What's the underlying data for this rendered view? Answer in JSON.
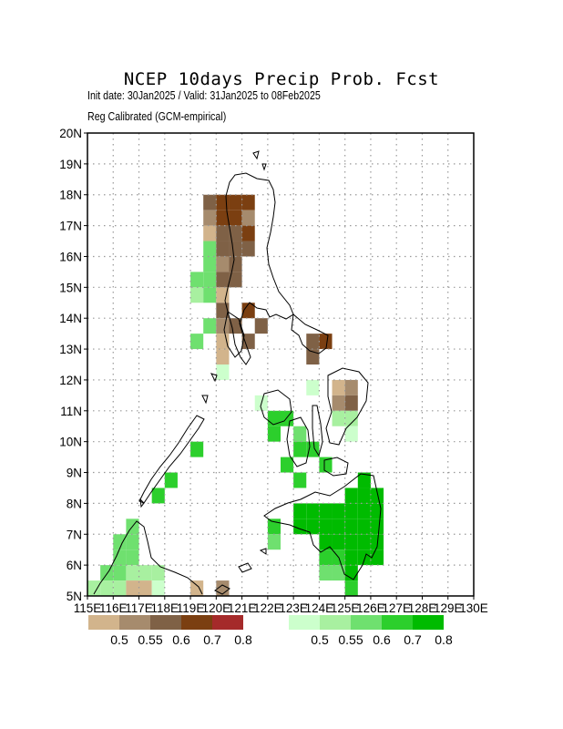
{
  "title": "NCEP 10days Precip Prob. Fcst",
  "subtitle1": "Init date: 30Jan2025 / Valid: 31Jan2025 to 08Feb2025",
  "subtitle2": "Reg Calibrated (GCM-empirical)",
  "map": {
    "lon_range": [
      115,
      130
    ],
    "lat_range": [
      5,
      20
    ],
    "grid": true,
    "lon_ticks": [
      "115E",
      "116E",
      "117E",
      "118E",
      "119E",
      "120E",
      "121E",
      "122E",
      "123E",
      "124E",
      "125E",
      "126E",
      "127E",
      "128E",
      "129E",
      "130E"
    ],
    "lat_ticks": [
      "5N",
      "6N",
      "7N",
      "8N",
      "9N",
      "10N",
      "11N",
      "12N",
      "13N",
      "14N",
      "15N",
      "16N",
      "17N",
      "18N",
      "19N",
      "20N"
    ]
  },
  "legend_dry": {
    "labels": [
      "0.5",
      "0.55",
      "0.6",
      "0.7",
      "0.8"
    ],
    "colors": [
      "#d2b48c",
      "#a68b6d",
      "#7f6146",
      "#7b3f11",
      "#a52a2a"
    ]
  },
  "legend_wet": {
    "labels": [
      "0.5",
      "0.55",
      "0.6",
      "0.7",
      "0.8"
    ],
    "colors": [
      "#ccffcc",
      "#a8f0a0",
      "#6fe06f",
      "#2ccf2c",
      "#00bb00"
    ]
  },
  "cells": [
    {
      "lon": 119.75,
      "lat": 17.75,
      "c": "#7f6146"
    },
    {
      "lon": 120.25,
      "lat": 17.75,
      "c": "#7b3f11"
    },
    {
      "lon": 120.75,
      "lat": 17.75,
      "c": "#7b3f11"
    },
    {
      "lon": 121.25,
      "lat": 17.75,
      "c": "#7b3f11"
    },
    {
      "lon": 119.75,
      "lat": 17.25,
      "c": "#a68b6d"
    },
    {
      "lon": 120.25,
      "lat": 17.25,
      "c": "#7b3f11"
    },
    {
      "lon": 120.75,
      "lat": 17.25,
      "c": "#7b3f11"
    },
    {
      "lon": 121.25,
      "lat": 17.25,
      "c": "#a68b6d"
    },
    {
      "lon": 119.75,
      "lat": 16.75,
      "c": "#d2b48c"
    },
    {
      "lon": 120.25,
      "lat": 16.75,
      "c": "#7f6146"
    },
    {
      "lon": 120.75,
      "lat": 16.75,
      "c": "#7f6146"
    },
    {
      "lon": 121.25,
      "lat": 16.75,
      "c": "#7b3f11"
    },
    {
      "lon": 119.75,
      "lat": 16.25,
      "c": "#6fe06f"
    },
    {
      "lon": 120.25,
      "lat": 16.25,
      "c": "#7f6146"
    },
    {
      "lon": 120.75,
      "lat": 16.25,
      "c": "#7f6146"
    },
    {
      "lon": 121.25,
      "lat": 16.25,
      "c": "#7f6146"
    },
    {
      "lon": 119.75,
      "lat": 15.75,
      "c": "#6fe06f"
    },
    {
      "lon": 120.25,
      "lat": 15.75,
      "c": "#a68b6d"
    },
    {
      "lon": 120.75,
      "lat": 15.75,
      "c": "#7f6146"
    },
    {
      "lon": 119.25,
      "lat": 15.25,
      "c": "#6fe06f"
    },
    {
      "lon": 119.75,
      "lat": 15.25,
      "c": "#6fe06f"
    },
    {
      "lon": 120.25,
      "lat": 15.25,
      "c": "#7f6146"
    },
    {
      "lon": 120.75,
      "lat": 15.25,
      "c": "#7f6146"
    },
    {
      "lon": 119.25,
      "lat": 14.75,
      "c": "#a8f0a0"
    },
    {
      "lon": 119.75,
      "lat": 14.75,
      "c": "#6fe06f"
    },
    {
      "lon": 120.25,
      "lat": 14.75,
      "c": "#d2b48c"
    },
    {
      "lon": 120.25,
      "lat": 14.25,
      "c": "#7f6146"
    },
    {
      "lon": 121.25,
      "lat": 14.25,
      "c": "#7b3f11"
    },
    {
      "lon": 119.75,
      "lat": 13.75,
      "c": "#6fe06f"
    },
    {
      "lon": 120.25,
      "lat": 13.75,
      "c": "#a68b6d"
    },
    {
      "lon": 120.75,
      "lat": 13.75,
      "c": "#7f6146"
    },
    {
      "lon": 121.75,
      "lat": 13.75,
      "c": "#7f6146"
    },
    {
      "lon": 119.25,
      "lat": 13.25,
      "c": "#6fe06f"
    },
    {
      "lon": 120.25,
      "lat": 13.25,
      "c": "#d2b48c"
    },
    {
      "lon": 121.25,
      "lat": 13.25,
      "c": "#7f6146"
    },
    {
      "lon": 123.75,
      "lat": 13.25,
      "c": "#7f6146"
    },
    {
      "lon": 124.25,
      "lat": 13.25,
      "c": "#7b3f11"
    },
    {
      "lon": 120.25,
      "lat": 12.75,
      "c": "#d2b48c"
    },
    {
      "lon": 123.75,
      "lat": 12.75,
      "c": "#7f6146"
    },
    {
      "lon": 120.25,
      "lat": 12.25,
      "c": "#ccffcc"
    },
    {
      "lon": 123.75,
      "lat": 11.75,
      "c": "#ccffcc"
    },
    {
      "lon": 124.75,
      "lat": 11.75,
      "c": "#d2b48c"
    },
    {
      "lon": 125.25,
      "lat": 11.75,
      "c": "#a68b6d"
    },
    {
      "lon": 121.75,
      "lat": 11.25,
      "c": "#ccffcc"
    },
    {
      "lon": 124.75,
      "lat": 11.25,
      "c": "#a68b6d"
    },
    {
      "lon": 125.25,
      "lat": 11.25,
      "c": "#7f6146"
    },
    {
      "lon": 122.25,
      "lat": 10.75,
      "c": "#2ccf2c"
    },
    {
      "lon": 122.75,
      "lat": 10.75,
      "c": "#2ccf2c"
    },
    {
      "lon": 124.75,
      "lat": 10.75,
      "c": "#a8f0a0"
    },
    {
      "lon": 125.25,
      "lat": 10.75,
      "c": "#a8f0a0"
    },
    {
      "lon": 122.25,
      "lat": 10.25,
      "c": "#2ccf2c"
    },
    {
      "lon": 123.25,
      "lat": 10.25,
      "c": "#6fe06f"
    },
    {
      "lon": 125.25,
      "lat": 10.25,
      "c": "#ccffcc"
    },
    {
      "lon": 119.25,
      "lat": 9.75,
      "c": "#2ccf2c"
    },
    {
      "lon": 123.25,
      "lat": 9.75,
      "c": "#2ccf2c"
    },
    {
      "lon": 123.75,
      "lat": 9.75,
      "c": "#2ccf2c"
    },
    {
      "lon": 122.75,
      "lat": 9.25,
      "c": "#2ccf2c"
    },
    {
      "lon": 124.25,
      "lat": 9.25,
      "c": "#2ccf2c"
    },
    {
      "lon": 118.25,
      "lat": 8.75,
      "c": "#2ccf2c"
    },
    {
      "lon": 123.25,
      "lat": 8.75,
      "c": "#2ccf2c"
    },
    {
      "lon": 125.75,
      "lat": 8.75,
      "c": "#00bb00"
    },
    {
      "lon": 117.75,
      "lat": 8.25,
      "c": "#2ccf2c"
    },
    {
      "lon": 125.25,
      "lat": 8.25,
      "c": "#00bb00"
    },
    {
      "lon": 125.75,
      "lat": 8.25,
      "c": "#00bb00"
    },
    {
      "lon": 126.25,
      "lat": 8.25,
      "c": "#00bb00"
    },
    {
      "lon": 123.25,
      "lat": 7.75,
      "c": "#00bb00"
    },
    {
      "lon": 123.75,
      "lat": 7.75,
      "c": "#00bb00"
    },
    {
      "lon": 124.25,
      "lat": 7.75,
      "c": "#00bb00"
    },
    {
      "lon": 124.75,
      "lat": 7.75,
      "c": "#00bb00"
    },
    {
      "lon": 125.25,
      "lat": 7.75,
      "c": "#00bb00"
    },
    {
      "lon": 125.75,
      "lat": 7.75,
      "c": "#00bb00"
    },
    {
      "lon": 126.25,
      "lat": 7.75,
      "c": "#00bb00"
    },
    {
      "lon": 122.25,
      "lat": 7.25,
      "c": "#2ccf2c"
    },
    {
      "lon": 123.25,
      "lat": 7.25,
      "c": "#00bb00"
    },
    {
      "lon": 123.75,
      "lat": 7.25,
      "c": "#00bb00"
    },
    {
      "lon": 124.25,
      "lat": 7.25,
      "c": "#00bb00"
    },
    {
      "lon": 124.75,
      "lat": 7.25,
      "c": "#00bb00"
    },
    {
      "lon": 125.25,
      "lat": 7.25,
      "c": "#00bb00"
    },
    {
      "lon": 125.75,
      "lat": 7.25,
      "c": "#00bb00"
    },
    {
      "lon": 126.25,
      "lat": 7.25,
      "c": "#00bb00"
    },
    {
      "lon": 116.75,
      "lat": 7.25,
      "c": "#6fe06f"
    },
    {
      "lon": 122.25,
      "lat": 6.75,
      "c": "#6fe06f"
    },
    {
      "lon": 124.25,
      "lat": 6.75,
      "c": "#00bb00"
    },
    {
      "lon": 124.75,
      "lat": 6.75,
      "c": "#00bb00"
    },
    {
      "lon": 125.25,
      "lat": 6.75,
      "c": "#00bb00"
    },
    {
      "lon": 125.75,
      "lat": 6.75,
      "c": "#00bb00"
    },
    {
      "lon": 126.25,
      "lat": 6.75,
      "c": "#00bb00"
    },
    {
      "lon": 116.25,
      "lat": 6.75,
      "c": "#6fe06f"
    },
    {
      "lon": 116.75,
      "lat": 6.75,
      "c": "#6fe06f"
    },
    {
      "lon": 116.25,
      "lat": 6.25,
      "c": "#6fe06f"
    },
    {
      "lon": 116.75,
      "lat": 6.25,
      "c": "#6fe06f"
    },
    {
      "lon": 124.25,
      "lat": 6.25,
      "c": "#2ccf2c"
    },
    {
      "lon": 124.75,
      "lat": 6.25,
      "c": "#2ccf2c"
    },
    {
      "lon": 125.25,
      "lat": 6.25,
      "c": "#00bb00"
    },
    {
      "lon": 125.75,
      "lat": 6.25,
      "c": "#00bb00"
    },
    {
      "lon": 126.25,
      "lat": 6.25,
      "c": "#00bb00"
    },
    {
      "lon": 115.75,
      "lat": 5.75,
      "c": "#6fe06f"
    },
    {
      "lon": 116.25,
      "lat": 5.75,
      "c": "#6fe06f"
    },
    {
      "lon": 116.75,
      "lat": 5.75,
      "c": "#a8f0a0"
    },
    {
      "lon": 117.25,
      "lat": 5.75,
      "c": "#a8f0a0"
    },
    {
      "lon": 117.75,
      "lat": 5.75,
      "c": "#a8f0a0"
    },
    {
      "lon": 124.25,
      "lat": 5.75,
      "c": "#6fe06f"
    },
    {
      "lon": 124.75,
      "lat": 5.75,
      "c": "#6fe06f"
    },
    {
      "lon": 125.25,
      "lat": 5.75,
      "c": "#00bb00"
    },
    {
      "lon": 115.25,
      "lat": 5.25,
      "c": "#a8f0a0"
    },
    {
      "lon": 115.75,
      "lat": 5.25,
      "c": "#a8f0a0"
    },
    {
      "lon": 116.25,
      "lat": 5.25,
      "c": "#a8f0a0"
    },
    {
      "lon": 116.75,
      "lat": 5.25,
      "c": "#d2b48c"
    },
    {
      "lon": 117.25,
      "lat": 5.25,
      "c": "#d2b48c"
    },
    {
      "lon": 117.75,
      "lat": 5.25,
      "c": "#ccffcc"
    },
    {
      "lon": 119.25,
      "lat": 5.25,
      "c": "#d2b48c"
    },
    {
      "lon": 120.25,
      "lat": 5.25,
      "c": "#a68b6d"
    },
    {
      "lon": 125.25,
      "lat": 5.25,
      "c": "#2ccf2c"
    }
  ]
}
